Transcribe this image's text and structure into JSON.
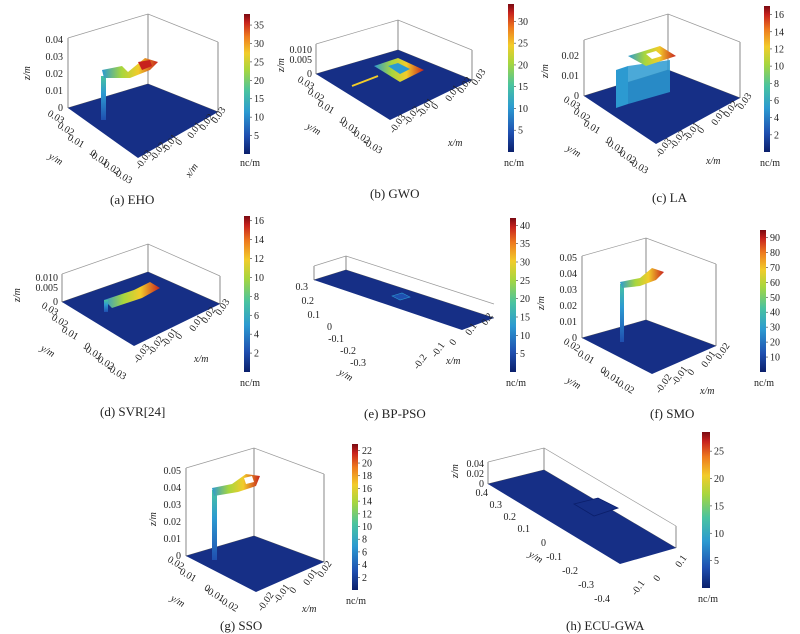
{
  "colors": {
    "colormap": [
      "#0b1f6b",
      "#1f4fb0",
      "#2c9ad1",
      "#49c3a0",
      "#a7d63e",
      "#f2cc2a",
      "#ee7a1e",
      "#c7221d",
      "#7a0a12"
    ],
    "floor": "#162f86",
    "feature": "#2f78c4"
  },
  "chart_data": [
    {
      "type": "heatmap",
      "id": "a",
      "caption": "(a) EHO",
      "x": {
        "label": "x/m",
        "ticks": [
          "-0.03",
          "-0.02",
          "-0.01",
          "0",
          "0.01",
          "0.02",
          "0.03"
        ]
      },
      "y": {
        "label": "y/m",
        "ticks": [
          "-0.03",
          "-0.02",
          "-0.01",
          "0",
          "0.01",
          "0.02",
          "0.03"
        ]
      },
      "z": {
        "label": "z/m",
        "ticks": [
          "0",
          "0.01",
          "0.02",
          "0.03",
          "0.04"
        ]
      },
      "colorbar": {
        "unit": "nc/m",
        "ticks": [
          "5",
          "10",
          "15",
          "20",
          "25",
          "30",
          "35"
        ],
        "min": 0,
        "max": 38
      }
    },
    {
      "type": "heatmap",
      "id": "b",
      "caption": "(b) GWO",
      "x": {
        "label": "x/m",
        "ticks": [
          "-0.03",
          "-0.02",
          "-0.01",
          "0",
          "0.01",
          "0.02",
          "0.03"
        ]
      },
      "y": {
        "label": "y/m",
        "ticks": [
          "-0.03",
          "-0.02",
          "-0.01",
          "0",
          "0.01",
          "0.02",
          "0.03"
        ]
      },
      "z": {
        "label": "z/m",
        "ticks": [
          "0",
          "0.005",
          "0.010"
        ]
      },
      "colorbar": {
        "unit": "nc/m",
        "ticks": [
          "5",
          "10",
          "15",
          "20",
          "25",
          "30"
        ],
        "min": 0,
        "max": 34
      }
    },
    {
      "type": "heatmap",
      "id": "c",
      "caption": "(c) LA",
      "x": {
        "label": "x/m",
        "ticks": [
          "-0.03",
          "-0.02",
          "-0.01",
          "0",
          "0.01",
          "0.02",
          "0.03"
        ]
      },
      "y": {
        "label": "y/m",
        "ticks": [
          "-0.03",
          "-0.02",
          "-0.01",
          "0",
          "0.01",
          "0.02",
          "0.03"
        ]
      },
      "z": {
        "label": "z/m",
        "ticks": [
          "0",
          "0.01",
          "0.02"
        ]
      },
      "colorbar": {
        "unit": "nc/m",
        "ticks": [
          "2",
          "4",
          "6",
          "8",
          "10",
          "12",
          "14",
          "16"
        ],
        "min": 0,
        "max": 17
      }
    },
    {
      "type": "heatmap",
      "id": "d",
      "caption": "(d) SVR[24]",
      "x": {
        "label": "x/m",
        "ticks": [
          "-0.03",
          "-0.02",
          "-0.01",
          "0",
          "0.01",
          "0.02",
          "0.03"
        ]
      },
      "y": {
        "label": "y/m",
        "ticks": [
          "-0.03",
          "-0.02",
          "-0.01",
          "0",
          "0.01",
          "0.02",
          "0.03"
        ]
      },
      "z": {
        "label": "z/m",
        "ticks": [
          "0",
          "0.005",
          "0.010"
        ]
      },
      "colorbar": {
        "unit": "nc/m",
        "ticks": [
          "2",
          "4",
          "6",
          "8",
          "10",
          "12",
          "14",
          "16"
        ],
        "min": 0,
        "max": 16.5
      }
    },
    {
      "type": "heatmap",
      "id": "e",
      "caption": "(e) BP-PSO",
      "x": {
        "label": "x/m",
        "ticks": [
          "-0.2",
          "-0.1",
          "0",
          "0.1",
          "0.2"
        ]
      },
      "y": {
        "label": "y/m",
        "ticks": [
          "-0.3",
          "-0.2",
          "-0.1",
          "0",
          "0.1",
          "0.2",
          "0.3"
        ]
      },
      "z": {
        "label": "",
        "ticks": []
      },
      "colorbar": {
        "unit": "nc/m",
        "ticks": [
          "5",
          "10",
          "15",
          "20",
          "25",
          "30",
          "35",
          "40"
        ],
        "min": 0,
        "max": 42
      }
    },
    {
      "type": "heatmap",
      "id": "f",
      "caption": "(f) SMO",
      "x": {
        "label": "x/m",
        "ticks": [
          "-0.02",
          "-0.01",
          "0",
          "0.01",
          "0.02"
        ]
      },
      "y": {
        "label": "y/m",
        "ticks": [
          "-0.02",
          "-0.01",
          "0",
          "0.01",
          "0.02"
        ]
      },
      "z": {
        "label": "z/m",
        "ticks": [
          "0",
          "0.01",
          "0.02",
          "0.03",
          "0.04",
          "0.05"
        ]
      },
      "colorbar": {
        "unit": "nc/m",
        "ticks": [
          "10",
          "20",
          "30",
          "40",
          "50",
          "60",
          "70",
          "80",
          "90"
        ],
        "min": 0,
        "max": 95
      }
    },
    {
      "type": "heatmap",
      "id": "g",
      "caption": "(g) SSO",
      "x": {
        "label": "x/m",
        "ticks": [
          "-0.02",
          "-0.01",
          "0",
          "0.01",
          "0.02"
        ]
      },
      "y": {
        "label": "y/m",
        "ticks": [
          "-0.02",
          "-0.01",
          "0",
          "0.01",
          "0.02"
        ]
      },
      "z": {
        "label": "z/m",
        "ticks": [
          "0",
          "0.01",
          "0.02",
          "0.03",
          "0.04",
          "0.05"
        ]
      },
      "colorbar": {
        "unit": "nc/m",
        "ticks": [
          "2",
          "4",
          "6",
          "8",
          "10",
          "12",
          "14",
          "16",
          "18",
          "20",
          "22"
        ],
        "min": 0,
        "max": 23
      }
    },
    {
      "type": "heatmap",
      "id": "h",
      "caption": "(h) ECU-GWA",
      "x": {
        "label": "",
        "ticks": [
          "-0.1",
          "0",
          "0.1"
        ]
      },
      "y": {
        "label": "y/m",
        "ticks": [
          "-0.4",
          "-0.3",
          "-0.2",
          "-0.1",
          "0",
          "0.1",
          "0.2",
          "0.3",
          "0.4"
        ]
      },
      "z": {
        "label": "z/m",
        "ticks": [
          "0",
          "0.02",
          "0.04"
        ]
      },
      "colorbar": {
        "unit": "nc/m",
        "ticks": [
          "5",
          "10",
          "15",
          "20",
          "25"
        ],
        "min": 0,
        "max": 28.5
      }
    }
  ]
}
